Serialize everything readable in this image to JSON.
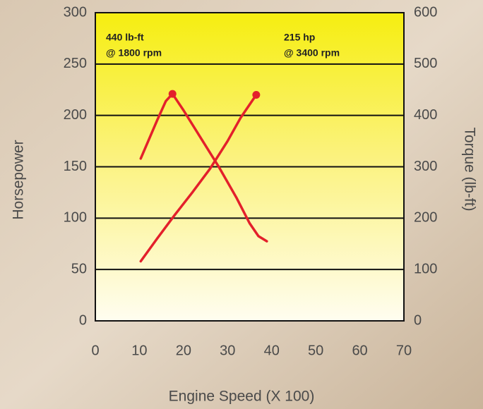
{
  "chart_data": {
    "type": "line",
    "x_label": "Engine Speed (X 100)",
    "y_label": "Horsepower",
    "y2_label": "Torque (lb-ft)",
    "xlim": [
      0,
      70
    ],
    "xticks": [
      0,
      10,
      20,
      30,
      40,
      50,
      60,
      70
    ],
    "ylim": [
      0,
      300
    ],
    "yticks": [
      0,
      50,
      100,
      150,
      200,
      250,
      300
    ],
    "y2lim": [
      0,
      600
    ],
    "y2ticks": [
      0,
      100,
      200,
      300,
      400,
      500,
      600
    ],
    "grid": true,
    "annotations": [
      {
        "lines": [
          "440 lb-ft",
          "@ 1800 rpm"
        ]
      },
      {
        "lines": [
          "215 hp",
          "@ 3400 rpm"
        ]
      }
    ],
    "series": [
      {
        "color": "#e3202b",
        "x": [
          10.3,
          12,
          14,
          16,
          17.5,
          20,
          24,
          28,
          32,
          35,
          37,
          38.9
        ],
        "values": [
          316,
          350,
          390,
          428,
          442,
          410,
          355,
          300,
          240,
          190,
          165,
          155
        ],
        "axis": "y2"
      },
      {
        "color": "#e3202b",
        "x": [
          10.3,
          14,
          18,
          22,
          26,
          30,
          33,
          36.5
        ],
        "values": [
          58,
          80,
          103,
          125,
          148,
          175,
          198,
          220
        ]
      }
    ]
  }
}
